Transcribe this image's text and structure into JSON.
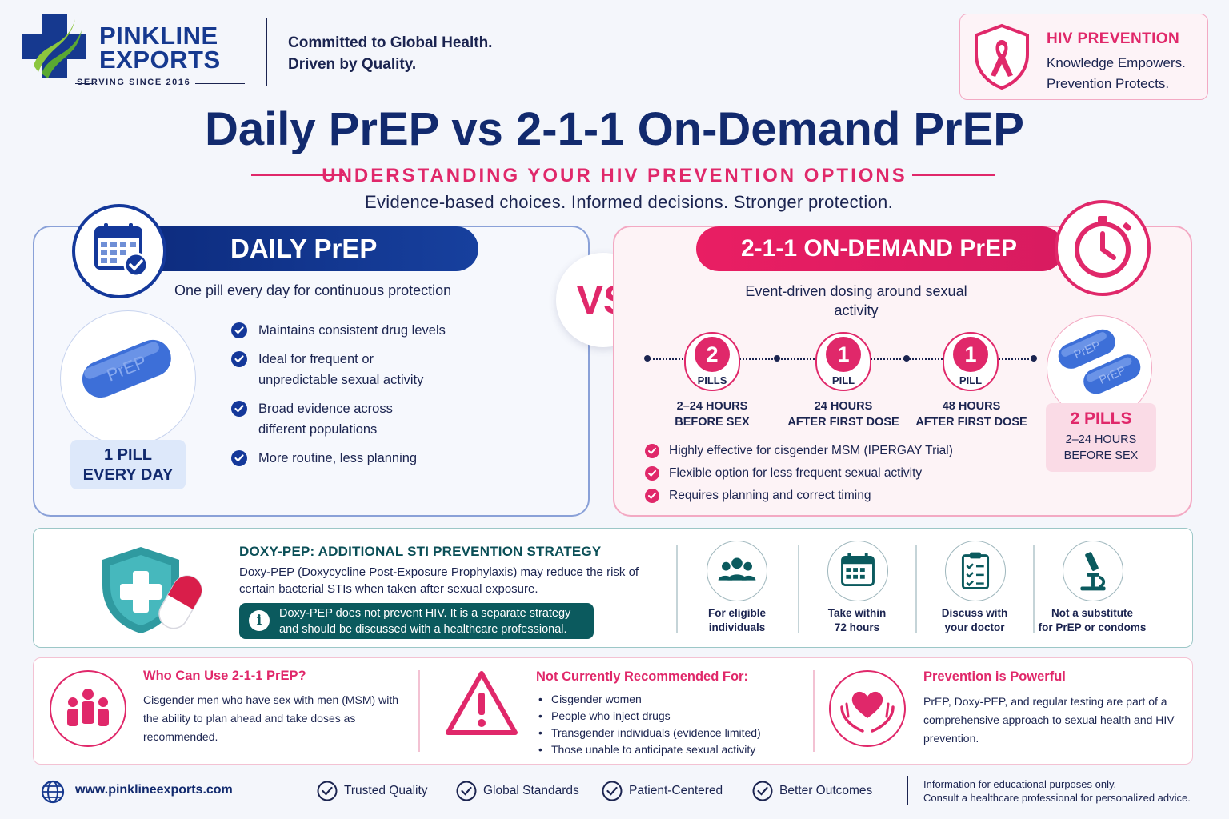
{
  "brand": {
    "name_line1": "PINKLINE",
    "name_line2": "EXPORTS",
    "since": "SERVING SINCE 2016",
    "tagline_line1": "Committed to Global Health.",
    "tagline_line2": "Driven by Quality."
  },
  "hiv_card": {
    "title": "HIV PREVENTION",
    "line1": "Knowledge Empowers.",
    "line2": "Prevention Protects."
  },
  "header": {
    "title": "Daily PrEP vs 2-1-1 On-Demand PrEP",
    "subtitle": "UNDERSTANDING YOUR HIV PREVENTION OPTIONS",
    "strapline": "Evidence-based choices. Informed decisions. Stronger protection."
  },
  "daily": {
    "banner": "DAILY PrEP",
    "tagline": "One pill every day for continuous protection",
    "pill_text": "PrEP",
    "box_line1": "1 PILL",
    "box_line2": "EVERY DAY",
    "benefits": [
      "Maintains consistent drug levels",
      "Ideal for frequent or unpredictable sexual activity",
      "Broad evidence across different populations",
      "More routine, less planning"
    ]
  },
  "vs": "VS",
  "on_demand": {
    "banner": "2-1-1 ON-DEMAND PrEP",
    "tagline": "Event-driven dosing around sexual activity",
    "doses": [
      {
        "count": "2",
        "unit": "PILLS",
        "time_line1": "2–24 HOURS",
        "time_line2": "BEFORE SEX"
      },
      {
        "count": "1",
        "unit": "PILL",
        "time_line1": "24 HOURS",
        "time_line2": "AFTER FIRST DOSE"
      },
      {
        "count": "1",
        "unit": "PILL",
        "time_line1": "48 HOURS",
        "time_line2": "AFTER FIRST DOSE"
      }
    ],
    "pill_text": "PrEP",
    "box_count": "2 PILLS",
    "box_line1": "2–24 HOURS",
    "box_line2": "BEFORE SEX",
    "benefits": [
      "Highly effective for cisgender MSM (IPERGAY Trial)",
      "Flexible option for less frequent sexual activity",
      "Requires planning and correct timing"
    ]
  },
  "doxy": {
    "title": "DOXY-PEP:  ADDITIONAL STI PREVENTION STRATEGY",
    "text": "Doxy-PEP (Doxycycline Post-Exposure Prophylaxis) may reduce the risk of certain bacterial STIs when taken after sexual exposure.",
    "note_line1": "Doxy-PEP does not prevent HIV. It is a separate strategy",
    "note_line2": "and should be discussed with a healthcare professional.",
    "features": [
      {
        "icon": "group-icon",
        "line1": "For eligible",
        "line2": "individuals"
      },
      {
        "icon": "calendar-icon",
        "line1": "Take within",
        "line2": "72 hours"
      },
      {
        "icon": "clipboard-icon",
        "line1": "Discuss with",
        "line2": "your doctor"
      },
      {
        "icon": "microscope-icon",
        "line1": "Not a substitute",
        "line2": "for PrEP or condoms"
      }
    ]
  },
  "info": {
    "who_title": "Who Can Use 2-1-1 PrEP?",
    "who_text": "Cisgender men who have sex with men (MSM) with the ability to plan ahead and take doses as recommended.",
    "not_title": "Not Currently Recommended For:",
    "not_items": [
      "Cisgender women",
      "People who inject drugs",
      "Transgender individuals (evidence limited)",
      "Those unable to anticipate sexual activity"
    ],
    "power_title": "Prevention is Powerful",
    "power_text": "PrEP, Doxy-PEP, and regular testing are part of a comprehensive approach to sexual health and HIV prevention."
  },
  "footer": {
    "website": "www.pinklineexports.com",
    "values": [
      "Trusted Quality",
      "Global Standards",
      "Patient-Centered",
      "Better Outcomes"
    ],
    "disclaimer_line1": "Information for educational purposes only.",
    "disclaimer_line2": "Consult a healthcare professional for personalized advice."
  },
  "colors": {
    "navy": "#122a6e",
    "pink": "#e0286a",
    "teal": "#0b5a5e",
    "pill_blue": "#3d6fd8"
  }
}
